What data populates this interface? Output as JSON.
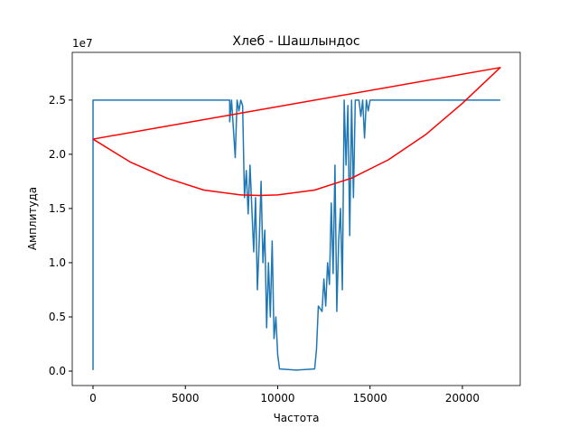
{
  "chart_data": {
    "type": "line",
    "title": "Хлеб - Шашлындос",
    "xlabel": "Частота",
    "ylabel": "Амплитуда",
    "y_offset_label": "1e7",
    "xlim": [
      -1125,
      23130
    ],
    "ylim": [
      -0.133,
      2.94
    ],
    "xticks": [
      0,
      5000,
      10000,
      15000,
      20000
    ],
    "yticks": [
      {
        "value": 0,
        "label": "0.0"
      },
      0.5,
      {
        "value": 1,
        "label": "1.0"
      },
      1.5,
      {
        "value": 2,
        "label": "2.0"
      },
      2.5
    ],
    "series": [
      {
        "color": "#1f77b4",
        "x": [
          0,
          0,
          7400,
          7400,
          7500,
          7700,
          7800,
          7900,
          8000,
          8100,
          8200,
          8300,
          8400,
          8500,
          8600,
          8700,
          8800,
          8900,
          9000,
          9100,
          9200,
          9300,
          9400,
          9500,
          9600,
          9700,
          9800,
          9900,
          10000,
          10100,
          11000,
          12000,
          12100,
          12200,
          12400,
          12500,
          12600,
          12700,
          12800,
          12900,
          13000,
          13100,
          13200,
          13300,
          13400,
          13500,
          13600,
          13700,
          13800,
          13900,
          14000,
          14100,
          14200,
          14400,
          14500,
          14600,
          14700,
          14800,
          14900,
          15000,
          22050
        ],
        "values": [
          0.01,
          2.5,
          2.5,
          2.3,
          2.5,
          1.97,
          2.5,
          2.4,
          2.5,
          2.45,
          1.6,
          1.85,
          1.45,
          1.9,
          1.5,
          1.1,
          1.6,
          0.75,
          1.2,
          1.75,
          1.0,
          1.3,
          0.4,
          1.0,
          0.5,
          1.2,
          0.3,
          0.5,
          0.15,
          0.02,
          0.01,
          0.02,
          0.2,
          0.6,
          0.55,
          0.85,
          0.6,
          1.0,
          0.8,
          1.55,
          0.9,
          1.9,
          0.55,
          1.2,
          1.5,
          0.75,
          2.5,
          1.9,
          2.45,
          1.25,
          2.5,
          1.6,
          2.5,
          2.5,
          2.35,
          2.5,
          2.15,
          2.5,
          2.4,
          2.5,
          2.5
        ]
      },
      {
        "color": "#ff0000",
        "x": [
          0,
          2000,
          4000,
          6000,
          8000,
          9000,
          10000,
          12000,
          14000,
          16000,
          18000,
          20000,
          22050,
          0
        ],
        "values": [
          2.14,
          1.93,
          1.78,
          1.67,
          1.625,
          1.62,
          1.625,
          1.67,
          1.78,
          1.95,
          2.18,
          2.47,
          2.8,
          2.14
        ]
      }
    ]
  }
}
